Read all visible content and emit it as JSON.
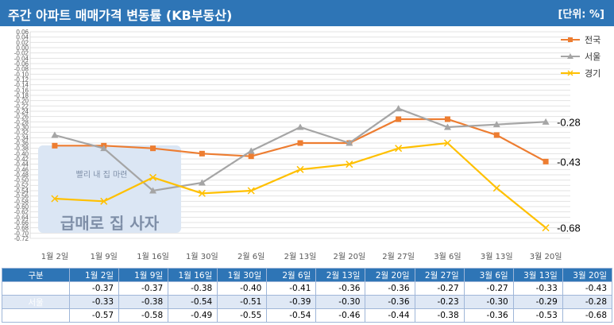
{
  "header": {
    "title": "주간 아파트 매매가격 변동률 (KB부동산)",
    "unit": "[단위: %]"
  },
  "watermark": {
    "text": "급매로 집 사자",
    "slogan": "빨리 내 집 마련"
  },
  "colors": {
    "header_bg": "#2e75b6",
    "전국": "#ed7d31",
    "서울": "#a5a5a5",
    "경기": "#ffc000"
  },
  "table": {
    "corner": "구분"
  },
  "chart_data": {
    "type": "line",
    "categories": [
      "1월 2일",
      "1월 9일",
      "1월 16일",
      "1월 30일",
      "2월 6일",
      "2월 13일",
      "2월 20일",
      "2월 27일",
      "3월 6일",
      "3월 13일",
      "3월 20일"
    ],
    "ylim": [
      -0.72,
      0.06
    ],
    "ytick_step": 0.02,
    "grid": true,
    "legend": "top-right",
    "series": [
      {
        "name": "전국",
        "marker": "square",
        "values": [
          -0.37,
          -0.37,
          -0.38,
          -0.4,
          -0.41,
          -0.36,
          -0.36,
          -0.27,
          -0.27,
          -0.33,
          -0.43
        ]
      },
      {
        "name": "서울",
        "marker": "triangle",
        "values": [
          -0.33,
          -0.38,
          -0.54,
          -0.51,
          -0.39,
          -0.3,
          -0.36,
          -0.23,
          -0.3,
          -0.29,
          -0.28
        ]
      },
      {
        "name": "경기",
        "marker": "x",
        "values": [
          -0.57,
          -0.58,
          -0.49,
          -0.55,
          -0.54,
          -0.46,
          -0.44,
          -0.38,
          -0.36,
          -0.53,
          -0.68
        ]
      }
    ],
    "end_labels": [
      "-0.43",
      "-0.28",
      "-0.68"
    ]
  }
}
